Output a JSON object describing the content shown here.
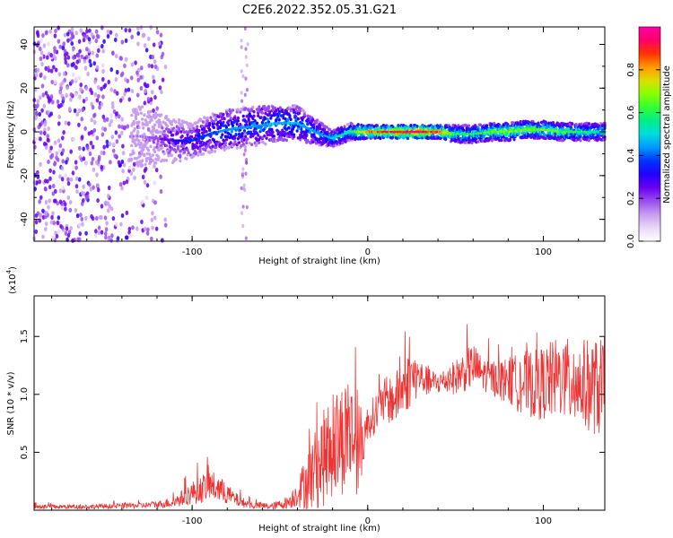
{
  "title": "C2E6.2022.352.05.31.G21",
  "colors": {
    "snr_line": "#ee3333",
    "colormap": [
      "#ffffff",
      "#e8d8f8",
      "#c89cf0",
      "#9a4cf0",
      "#6a00f0",
      "#2200ff",
      "#0033ff",
      "#0099ff",
      "#00dddd",
      "#00ee88",
      "#33ff33",
      "#88ff00",
      "#dddd00",
      "#ff9900",
      "#ff3300",
      "#ff0066",
      "#ff00aa"
    ]
  },
  "chart_data": [
    {
      "type": "heatmap",
      "xlabel": "Height of straight line (km)",
      "ylabel": "Frequency (Hz)",
      "xlim": [
        -190,
        135
      ],
      "ylim": [
        -50,
        48
      ],
      "xticks": [
        -100,
        0,
        100
      ],
      "yticks": [
        -40,
        -20,
        0,
        20,
        40
      ],
      "colorbar": {
        "label": "Normalized spectral amplitude",
        "range": [
          0,
          1
        ],
        "ticks": [
          "0.0",
          "0.2",
          "0.4",
          "0.6",
          "0.8"
        ]
      },
      "ridge": {
        "x": [
          -130,
          -120,
          -110,
          -100,
          -90,
          -80,
          -70,
          -60,
          -50,
          -40,
          -30,
          -20,
          -10,
          0,
          10,
          20,
          30,
          40,
          50,
          60,
          70,
          80,
          90,
          100,
          110,
          120,
          135
        ],
        "frequency": [
          -2,
          -3,
          -4,
          -4,
          -1,
          1,
          2,
          3,
          4,
          4,
          0,
          -3,
          0,
          0,
          0,
          0,
          0,
          0,
          -1,
          -1,
          0,
          0,
          1,
          1,
          0,
          0,
          0
        ],
        "amplitude": [
          0.15,
          0.2,
          0.3,
          0.35,
          0.4,
          0.45,
          0.45,
          0.45,
          0.5,
          0.5,
          0.45,
          0.5,
          0.55,
          0.85,
          0.9,
          0.95,
          0.95,
          0.9,
          0.6,
          0.6,
          0.65,
          0.7,
          0.7,
          0.7,
          0.65,
          0.6,
          0.55
        ],
        "halfwidth": [
          14,
          12,
          10,
          8,
          9,
          9,
          9,
          9,
          8,
          8,
          6,
          4,
          4,
          3,
          3,
          3,
          3,
          3,
          4,
          4,
          4,
          4,
          4,
          4,
          4,
          4,
          4
        ]
      }
    },
    {
      "type": "line",
      "xlabel": "Height of straight line (km)",
      "ylabel": "SNR (10 * v/v)",
      "y_multiplier_label": "(x10",
      "y_multiplier_exp": "4",
      "xlim": [
        -190,
        135
      ],
      "ylim": [
        0,
        18500
      ],
      "xticks": [
        -100,
        0,
        100
      ],
      "yticks": [
        5000,
        10000,
        15000
      ],
      "ytick_labels": [
        "0.5",
        "1.0",
        "1.5"
      ],
      "series": [
        {
          "x": [
            -190,
            -160,
            -130,
            -120,
            -110,
            -100,
            -95,
            -90,
            -85,
            -80,
            -75,
            -70,
            -65,
            -60,
            -55,
            -50,
            -45,
            -40,
            -35,
            -30,
            -25,
            -20,
            -15,
            -10,
            -5,
            0,
            5,
            10,
            15,
            20,
            25,
            30,
            35,
            40,
            45,
            50,
            55,
            60,
            65,
            70,
            75,
            80,
            85,
            90,
            95,
            100,
            105,
            110,
            115,
            120,
            125,
            130,
            135
          ],
          "y": [
            300,
            300,
            400,
            500,
            700,
            1500,
            1800,
            2200,
            1800,
            1400,
            900,
            600,
            400,
            400,
            300,
            500,
            700,
            1500,
            2500,
            3500,
            4500,
            5500,
            6200,
            6800,
            5200,
            7500,
            8500,
            9500,
            9500,
            10500,
            11500,
            11500,
            11000,
            11000,
            11200,
            11500,
            12000,
            12500,
            11800,
            11500,
            11300,
            11200,
            11000,
            11000,
            10800,
            11000,
            11200,
            11500,
            11000,
            11000,
            10800,
            10600,
            10500
          ],
          "amp": [
            200,
            200,
            250,
            300,
            500,
            1000,
            1200,
            1400,
            1200,
            900,
            600,
            400,
            300,
            300,
            300,
            400,
            600,
            1200,
            2500,
            3500,
            4200,
            4500,
            5000,
            5000,
            4000,
            1500,
            1800,
            2000,
            2200,
            2500,
            2500,
            1500,
            1200,
            1000,
            1200,
            1500,
            1800,
            2000,
            1500,
            1500,
            1800,
            2000,
            2500,
            2800,
            3000,
            3200,
            3500,
            3500,
            3800,
            3800,
            4000,
            4200,
            4500
          ]
        }
      ]
    }
  ]
}
